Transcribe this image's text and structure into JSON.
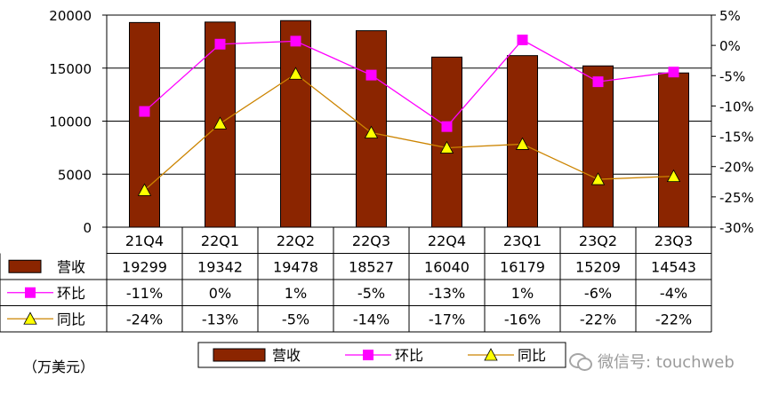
{
  "chart_data": {
    "type": "bar",
    "categories": [
      "21Q4",
      "22Q1",
      "22Q2",
      "22Q3",
      "22Q4",
      "23Q1",
      "23Q2",
      "23Q3"
    ],
    "series": [
      {
        "name": "营收",
        "type": "bar",
        "axis": "left",
        "values": [
          19299,
          19342,
          19478,
          18527,
          16040,
          16179,
          15209,
          14543
        ]
      },
      {
        "name": "环比",
        "type": "line",
        "axis": "right",
        "values": [
          -10.9,
          0.2,
          0.7,
          -4.9,
          -13.4,
          0.9,
          -6.0,
          -4.4
        ]
      },
      {
        "name": "同比",
        "type": "line",
        "axis": "right",
        "values": [
          -23.9,
          -12.9,
          -4.7,
          -14.4,
          -16.9,
          -16.3,
          -22.1,
          -21.6
        ]
      }
    ],
    "left_axis": {
      "min": 0,
      "max": 20000,
      "ticks": [
        "0",
        "5000",
        "10000",
        "15000",
        "20000"
      ]
    },
    "right_axis": {
      "min": -30,
      "max": 5,
      "ticks": [
        "5%",
        "0%",
        "-5%",
        "-10%",
        "-15%",
        "-20%",
        "-25%",
        "-30%"
      ]
    },
    "table": {
      "rows": [
        {
          "label": "营收",
          "cells": [
            "19299",
            "19342",
            "19478",
            "18527",
            "16040",
            "16179",
            "15209",
            "14543"
          ]
        },
        {
          "label": "环比",
          "cells": [
            "-11%",
            "0%",
            "1%",
            "-5%",
            "-13%",
            "1%",
            "-6%",
            "-4%"
          ]
        },
        {
          "label": "同比",
          "cells": [
            "-24%",
            "-13%",
            "-5%",
            "-14%",
            "-17%",
            "-16%",
            "-22%",
            "-22%"
          ]
        }
      ]
    },
    "legend": [
      "营收",
      "环比",
      "同比"
    ],
    "unit_label": "（万美元）",
    "colors": {
      "bar": "#8B2500",
      "qoq": "#FF00FF",
      "yoy": "#CC8400",
      "yoy_marker": "#FFFF00"
    },
    "grid": true,
    "legend_position": "bottom"
  },
  "watermark": {
    "text": "微信号: touchweb",
    "icon": "wechat-icon"
  }
}
